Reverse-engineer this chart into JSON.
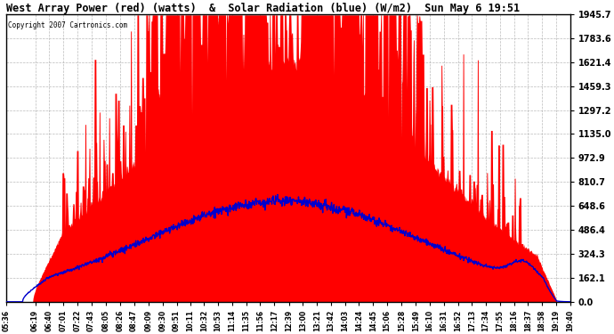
{
  "title": "West Array Power (red) (watts)  &  Solar Radiation (blue) (W/m2)  Sun May 6 19:51",
  "copyright": "Copyright 2007 Cartronics.com",
  "background_color": "#ffffff",
  "plot_bg_color": "#ffffff",
  "grid_color": "#aaaaaa",
  "yticks": [
    0.0,
    162.1,
    324.3,
    486.4,
    648.6,
    810.7,
    972.9,
    1135.0,
    1297.2,
    1459.3,
    1621.4,
    1783.6,
    1945.7
  ],
  "ymax": 1945.7,
  "ymin": 0.0,
  "red_color": "#ff0000",
  "blue_color": "#0000cc",
  "xtick_labels": [
    "05:36",
    "06:19",
    "06:40",
    "07:01",
    "07:22",
    "07:43",
    "08:05",
    "08:26",
    "08:47",
    "09:09",
    "09:30",
    "09:51",
    "10:11",
    "10:32",
    "10:53",
    "11:14",
    "11:35",
    "11:56",
    "12:17",
    "12:39",
    "13:00",
    "13:21",
    "13:42",
    "14:03",
    "14:24",
    "14:45",
    "15:06",
    "15:28",
    "15:49",
    "16:10",
    "16:31",
    "16:52",
    "17:13",
    "17:34",
    "17:55",
    "18:16",
    "18:37",
    "18:58",
    "19:19",
    "19:40"
  ]
}
